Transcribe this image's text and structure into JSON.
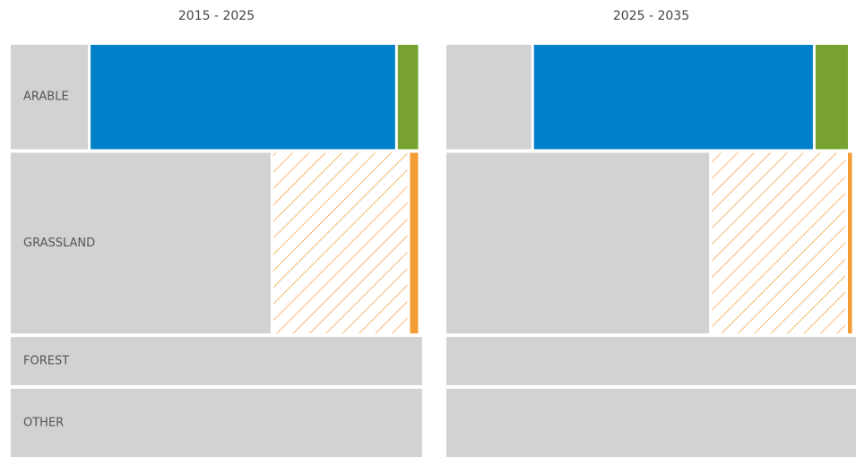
{
  "chart_data": {
    "type": "mosaic",
    "row_labels": [
      "ARABLE",
      "GRASSLAND",
      "FOREST",
      "OTHER"
    ],
    "row_shares": [
      26,
      45,
      12,
      17
    ],
    "panels": [
      {
        "title": "2015 - 2025",
        "rows": [
          [
            {
              "value": 19,
              "color": "#d1d2d4"
            },
            {
              "value": 75,
              "color": "#0080c8"
            },
            {
              "value": 5,
              "color": "#77a22f"
            }
          ],
          [
            {
              "value": 64,
              "color": "#d1d2d4"
            },
            {
              "value": 33,
              "color": "#f39c35",
              "pattern": "hatch"
            },
            {
              "value": 2,
              "color": "#f39c35"
            }
          ],
          [
            {
              "value": 100,
              "color": "#d1d2d4"
            }
          ],
          [
            {
              "value": 100,
              "color": "#d1d2d4"
            }
          ]
        ]
      },
      {
        "title": "2025 - 2035",
        "rows": [
          [
            {
              "value": 21,
              "color": "#d1d2d4"
            },
            {
              "value": 69,
              "color": "#0080c8"
            },
            {
              "value": 8,
              "color": "#77a22f"
            }
          ],
          [
            {
              "value": 65,
              "color": "#d1d2d4"
            },
            {
              "value": 33,
              "color": "#f39c35",
              "pattern": "hatch"
            },
            {
              "value": 1,
              "color": "#f39c35"
            }
          ],
          [
            {
              "value": 100,
              "color": "#d1d2d4"
            }
          ],
          [
            {
              "value": 100,
              "color": "#d1d2d4"
            }
          ]
        ]
      }
    ]
  }
}
